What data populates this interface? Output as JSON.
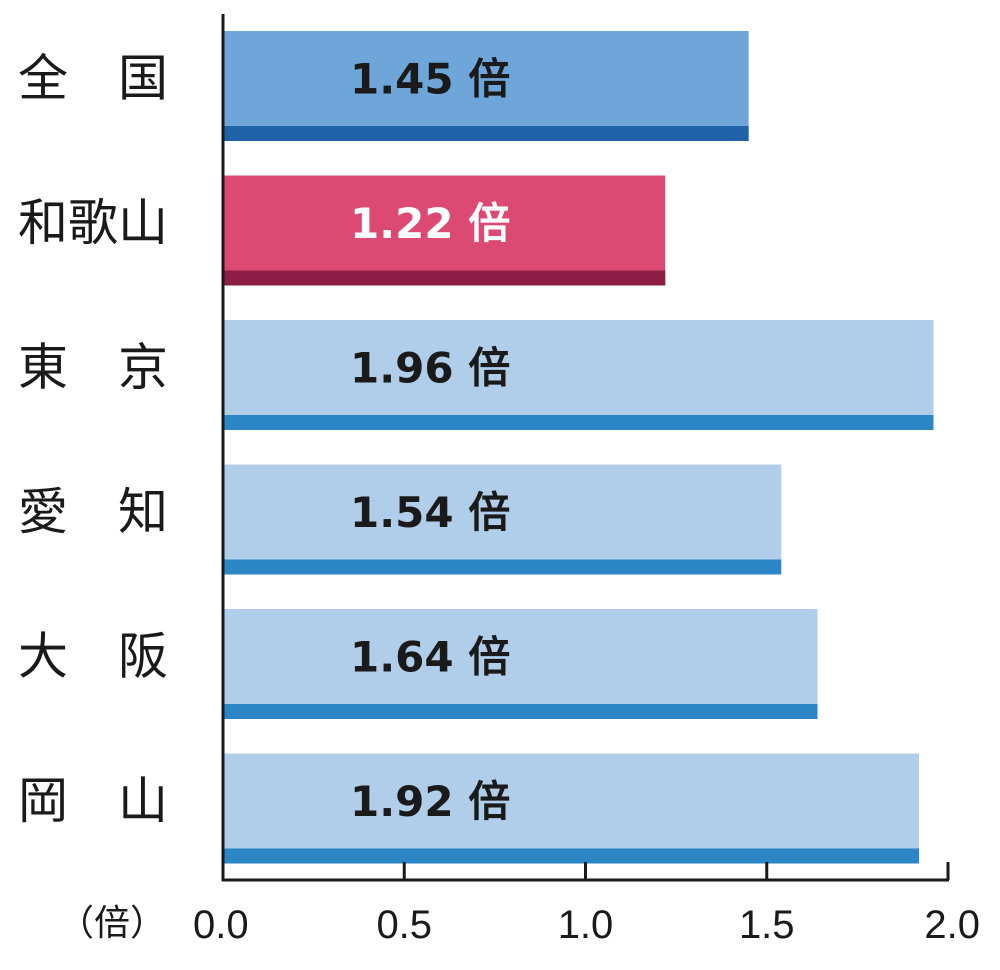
{
  "chart_data": {
    "type": "bar",
    "orientation": "horizontal",
    "categories": [
      "全国",
      "和歌山",
      "東京",
      "愛知",
      "大阪",
      "岡山"
    ],
    "category_display": [
      "全　国",
      "和歌山",
      "東　京",
      "愛　知",
      "大　阪",
      "岡　山"
    ],
    "values": [
      1.45,
      1.22,
      1.96,
      1.54,
      1.64,
      1.92
    ],
    "value_labels": [
      "1.45 倍",
      "1.22 倍",
      "1.96 倍",
      "1.54 倍",
      "1.64 倍",
      "1.92 倍"
    ],
    "unit_label": "（倍）",
    "xlim": [
      0,
      2.0
    ],
    "ticks": [
      0.0,
      0.5,
      1.0,
      1.5,
      2.0
    ],
    "tick_labels": [
      "0.0",
      "0.5",
      "1.0",
      "1.5",
      "2.0"
    ],
    "grid": false,
    "legend": "none",
    "bar_styles": [
      {
        "fill": "#6ea6d9",
        "stripe": "#1f62a8",
        "label_color": "#1a1a1a",
        "category_color": "#1a1a1a"
      },
      {
        "fill": "#dc4a74",
        "stripe": "#8c1d45",
        "label_color": "#ffffff",
        "category_color": "#dc4a74"
      },
      {
        "fill": "#b0cdea",
        "stripe": "#2c86c6",
        "label_color": "#1a1a1a",
        "category_color": "#1a1a1a"
      },
      {
        "fill": "#b0cdea",
        "stripe": "#2c86c6",
        "label_color": "#1a1a1a",
        "category_color": "#1a1a1a"
      },
      {
        "fill": "#b0cdea",
        "stripe": "#2c86c6",
        "label_color": "#1a1a1a",
        "category_color": "#1a1a1a"
      },
      {
        "fill": "#b0cdea",
        "stripe": "#2c86c6",
        "label_color": "#1a1a1a",
        "category_color": "#1a1a1a"
      }
    ],
    "axis_color": "#1a1a1a"
  }
}
